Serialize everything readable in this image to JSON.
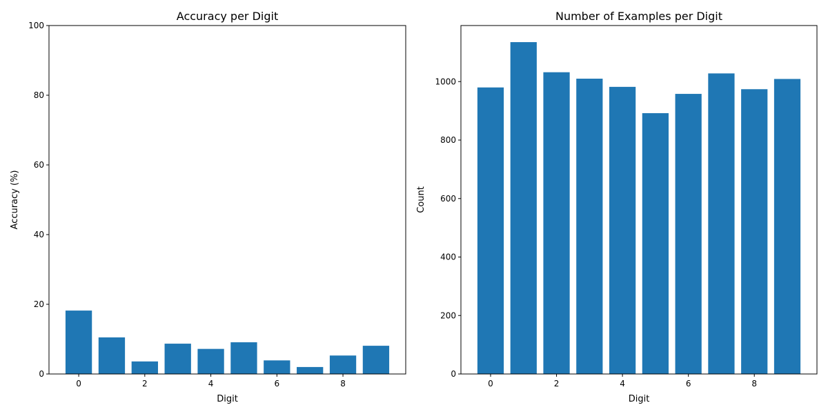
{
  "chart_data": [
    {
      "type": "bar",
      "title": "Accuracy per Digit",
      "xlabel": "Digit",
      "ylabel": "Accuracy (%)",
      "categories": [
        0,
        1,
        2,
        3,
        4,
        5,
        6,
        7,
        8,
        9
      ],
      "values": [
        18.2,
        10.5,
        3.6,
        8.7,
        7.2,
        9.1,
        3.9,
        2.0,
        5.3,
        8.1
      ],
      "xticks": [
        0,
        2,
        4,
        6,
        8
      ],
      "yticks": [
        0,
        20,
        40,
        60,
        80,
        100
      ],
      "ylim": [
        0,
        100
      ],
      "xlim": [
        -0.9,
        9.9
      ],
      "bar_color": "#1f77b4",
      "grid": false
    },
    {
      "type": "bar",
      "title": "Number of Examples per Digit",
      "xlabel": "Digit",
      "ylabel": "Count",
      "categories": [
        0,
        1,
        2,
        3,
        4,
        5,
        6,
        7,
        8,
        9
      ],
      "values": [
        980,
        1135,
        1032,
        1010,
        982,
        892,
        958,
        1028,
        974,
        1009
      ],
      "xticks": [
        0,
        2,
        4,
        6,
        8
      ],
      "yticks": [
        0,
        200,
        400,
        600,
        800,
        1000
      ],
      "ylim": [
        0,
        1191.75
      ],
      "xlim": [
        -0.9,
        9.9
      ],
      "bar_color": "#1f77b4",
      "grid": false
    }
  ]
}
